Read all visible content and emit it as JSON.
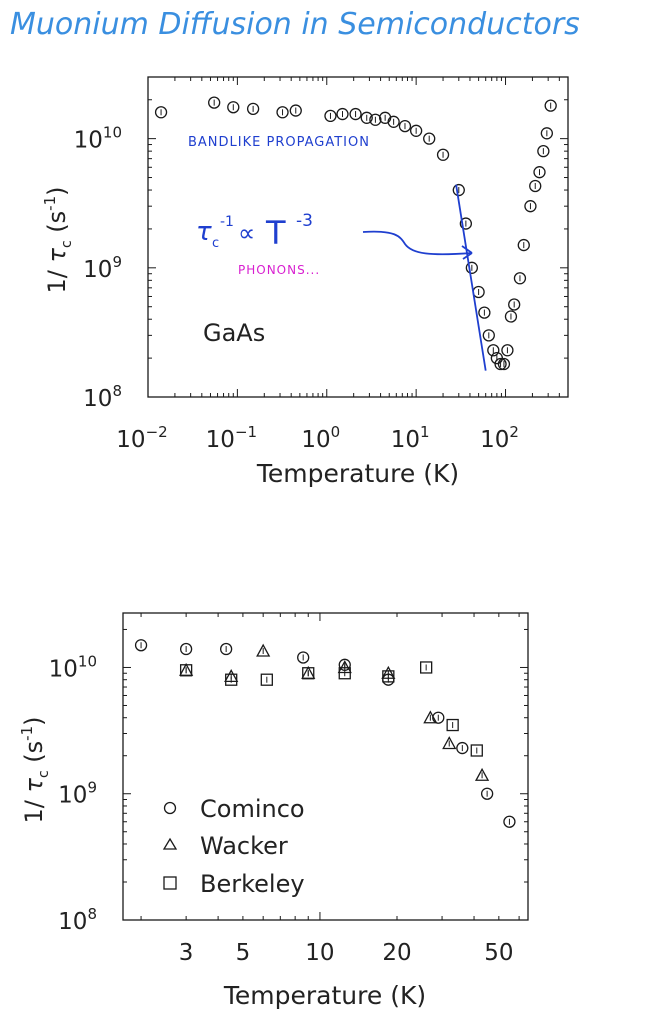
{
  "page": {
    "title": "Muonium Diffusion in Semiconductors"
  },
  "colors": {
    "title": "#3a8fe0",
    "annotation_blue": "#1f3fcf",
    "annotation_magenta": "#d81fd0",
    "ink": "#1a1a1a"
  },
  "chart_data": [
    {
      "type": "scatter",
      "x_scale": "log",
      "y_scale": "log",
      "xlim": [
        0.01,
        500
      ],
      "ylim": [
        100000000.0,
        30000000000.0
      ],
      "xlabel": "Temperature (K)",
      "ylabel": "1/τc (s-1)",
      "x_ticks": [
        {
          "value": 0.01,
          "base": "10",
          "exp": "−2"
        },
        {
          "value": 0.1,
          "base": "10",
          "exp": "−1"
        },
        {
          "value": 1,
          "base": "10",
          "exp": "0"
        },
        {
          "value": 10,
          "base": "10",
          "exp": "1"
        },
        {
          "value": 100,
          "base": "10",
          "exp": "2"
        }
      ],
      "y_ticks": [
        {
          "value": 100000000.0,
          "base": "10",
          "exp": "8"
        },
        {
          "value": 1000000000.0,
          "base": "10",
          "exp": "9"
        },
        {
          "value": 10000000000.0,
          "base": "10",
          "exp": "10"
        }
      ],
      "sample_label": "GaAs",
      "annotations": {
        "bandlike": "BANDLIKE PROPAGATION",
        "phonons": "PHONONS...",
        "formula": {
          "tau": "τ",
          "sub": "c",
          "sup_minus_one": "-1",
          "propto": "∝",
          "T": "T",
          "exp": "-3"
        }
      },
      "fit_line": {
        "x": [
          28,
          60
        ],
        "y": [
          4400000000.0,
          160000000.0
        ]
      },
      "series": [
        {
          "marker": "circle",
          "x": [
            0.014,
            0.055,
            0.09,
            0.15,
            0.32,
            0.45,
            1.1,
            1.5,
            2.1,
            2.8,
            3.5,
            4.5,
            5.6,
            7.5,
            10,
            14,
            20,
            30,
            36,
            42,
            50,
            58,
            65,
            73,
            80,
            88,
            96,
            105,
            115,
            125,
            145,
            160,
            190,
            215,
            240,
            265,
            290,
            320
          ],
          "y": [
            16000000000.0,
            19000000000.0,
            17500000000.0,
            17000000000.0,
            16000000000.0,
            16500000000.0,
            15000000000.0,
            15500000000.0,
            15500000000.0,
            14500000000.0,
            14000000000.0,
            14500000000.0,
            13500000000.0,
            12500000000.0,
            11500000000.0,
            10000000000.0,
            7500000000.0,
            4000000000.0,
            2200000000.0,
            1000000000.0,
            650000000.0,
            450000000.0,
            300000000.0,
            230000000.0,
            200000000.0,
            180000000.0,
            180000000.0,
            230000000.0,
            420000000.0,
            520000000.0,
            830000000.0,
            1500000000.0,
            3000000000.0,
            4300000000.0,
            5500000000.0,
            8000000000.0,
            11000000000.0,
            18000000000.0
          ]
        }
      ]
    },
    {
      "type": "scatter",
      "x_scale": "log",
      "y_scale": "log",
      "xlim": [
        1.7,
        65
      ],
      "ylim": [
        100000000.0,
        27000000000.0
      ],
      "xlabel": "Temperature (K)",
      "ylabel": "1/τc (s-1)",
      "x_ticks": [
        {
          "value": 3,
          "label": "3"
        },
        {
          "value": 5,
          "label": "5"
        },
        {
          "value": 10,
          "label": "10"
        },
        {
          "value": 20,
          "label": "20"
        },
        {
          "value": 50,
          "label": "50"
        }
      ],
      "y_ticks": [
        {
          "value": 100000000.0,
          "base": "10",
          "exp": "8"
        },
        {
          "value": 1000000000.0,
          "base": "10",
          "exp": "9"
        },
        {
          "value": 10000000000.0,
          "base": "10",
          "exp": "10"
        }
      ],
      "legend": {
        "placement": "bottom-left",
        "entries": [
          {
            "marker": "circle",
            "label": "Cominco"
          },
          {
            "marker": "triangle",
            "label": "Wacker"
          },
          {
            "marker": "square",
            "label": "Berkeley"
          }
        ]
      },
      "series": [
        {
          "name": "Cominco",
          "marker": "circle",
          "x": [
            2.0,
            3.0,
            4.3,
            8.6,
            12.5,
            18.5,
            29,
            36,
            45,
            55
          ],
          "y": [
            15000000000.0,
            14000000000.0,
            14000000000.0,
            12000000000.0,
            10500000000.0,
            8000000000.0,
            4000000000.0,
            2300000000.0,
            1000000000.0,
            600000000.0
          ]
        },
        {
          "name": "Wacker",
          "marker": "triangle",
          "x": [
            3.0,
            4.5,
            6.0,
            9.0,
            12.5,
            18.5,
            27,
            32,
            43
          ],
          "y": [
            9500000000.0,
            8500000000.0,
            13500000000.0,
            9000000000.0,
            10000000000.0,
            9000000000.0,
            4000000000.0,
            2500000000.0,
            1400000000.0
          ]
        },
        {
          "name": "Berkeley",
          "marker": "square",
          "x": [
            3.0,
            4.5,
            6.2,
            9.0,
            12.5,
            18.5,
            26,
            33,
            41
          ],
          "y": [
            9500000000.0,
            8000000000.0,
            8000000000.0,
            9000000000.0,
            9000000000.0,
            8500000000.0,
            10000000000.0,
            3500000000.0,
            2200000000.0
          ]
        }
      ]
    }
  ]
}
